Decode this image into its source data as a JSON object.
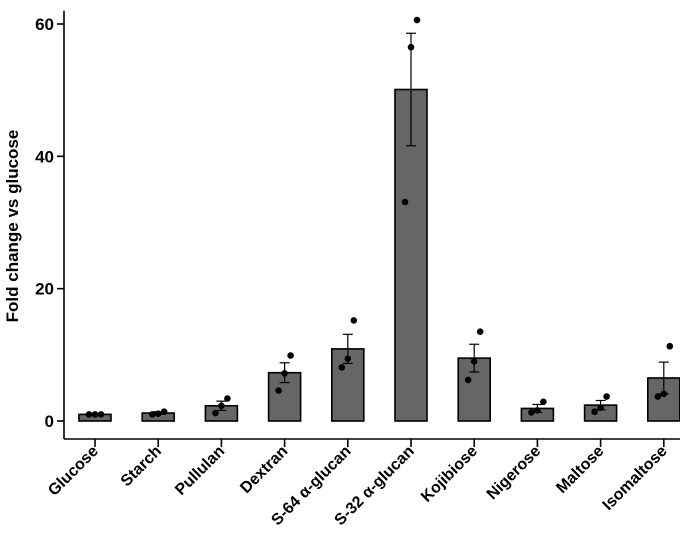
{
  "chart_data": {
    "type": "bar",
    "title": "",
    "xlabel": "",
    "ylabel": "Fold change vs glucose",
    "ylim": [
      0,
      62
    ],
    "yticks": [
      0,
      20,
      40,
      60
    ],
    "grid": false,
    "legend": "none",
    "colors": {
      "bar": "#666666",
      "outline": "#000000",
      "point": "#000000"
    },
    "categories": [
      "Glucose",
      "Starch",
      "Pullulan",
      "Dextran",
      "S-64 α-glucan",
      "S-32 α-glucan",
      "Kojibiose",
      "Nigerose",
      "Maltose",
      "Isomaltose"
    ],
    "values": [
      1.0,
      1.2,
      2.3,
      7.3,
      10.9,
      50.1,
      9.5,
      1.9,
      2.4,
      6.5
    ],
    "errors": [
      0.05,
      0.2,
      0.7,
      1.5,
      2.2,
      8.5,
      2.1,
      0.6,
      0.7,
      2.4
    ],
    "points": [
      [
        1.0,
        1.0,
        1.0
      ],
      [
        1.0,
        1.1,
        1.4
      ],
      [
        1.2,
        2.3,
        3.4
      ],
      [
        4.6,
        7.2,
        9.9
      ],
      [
        8.1,
        9.4,
        15.2
      ],
      [
        33.1,
        56.5,
        60.6
      ],
      [
        6.2,
        9.0,
        13.5
      ],
      [
        1.3,
        1.6,
        2.9
      ],
      [
        1.4,
        2.0,
        3.7
      ],
      [
        3.7,
        4.1,
        11.3
      ]
    ]
  }
}
